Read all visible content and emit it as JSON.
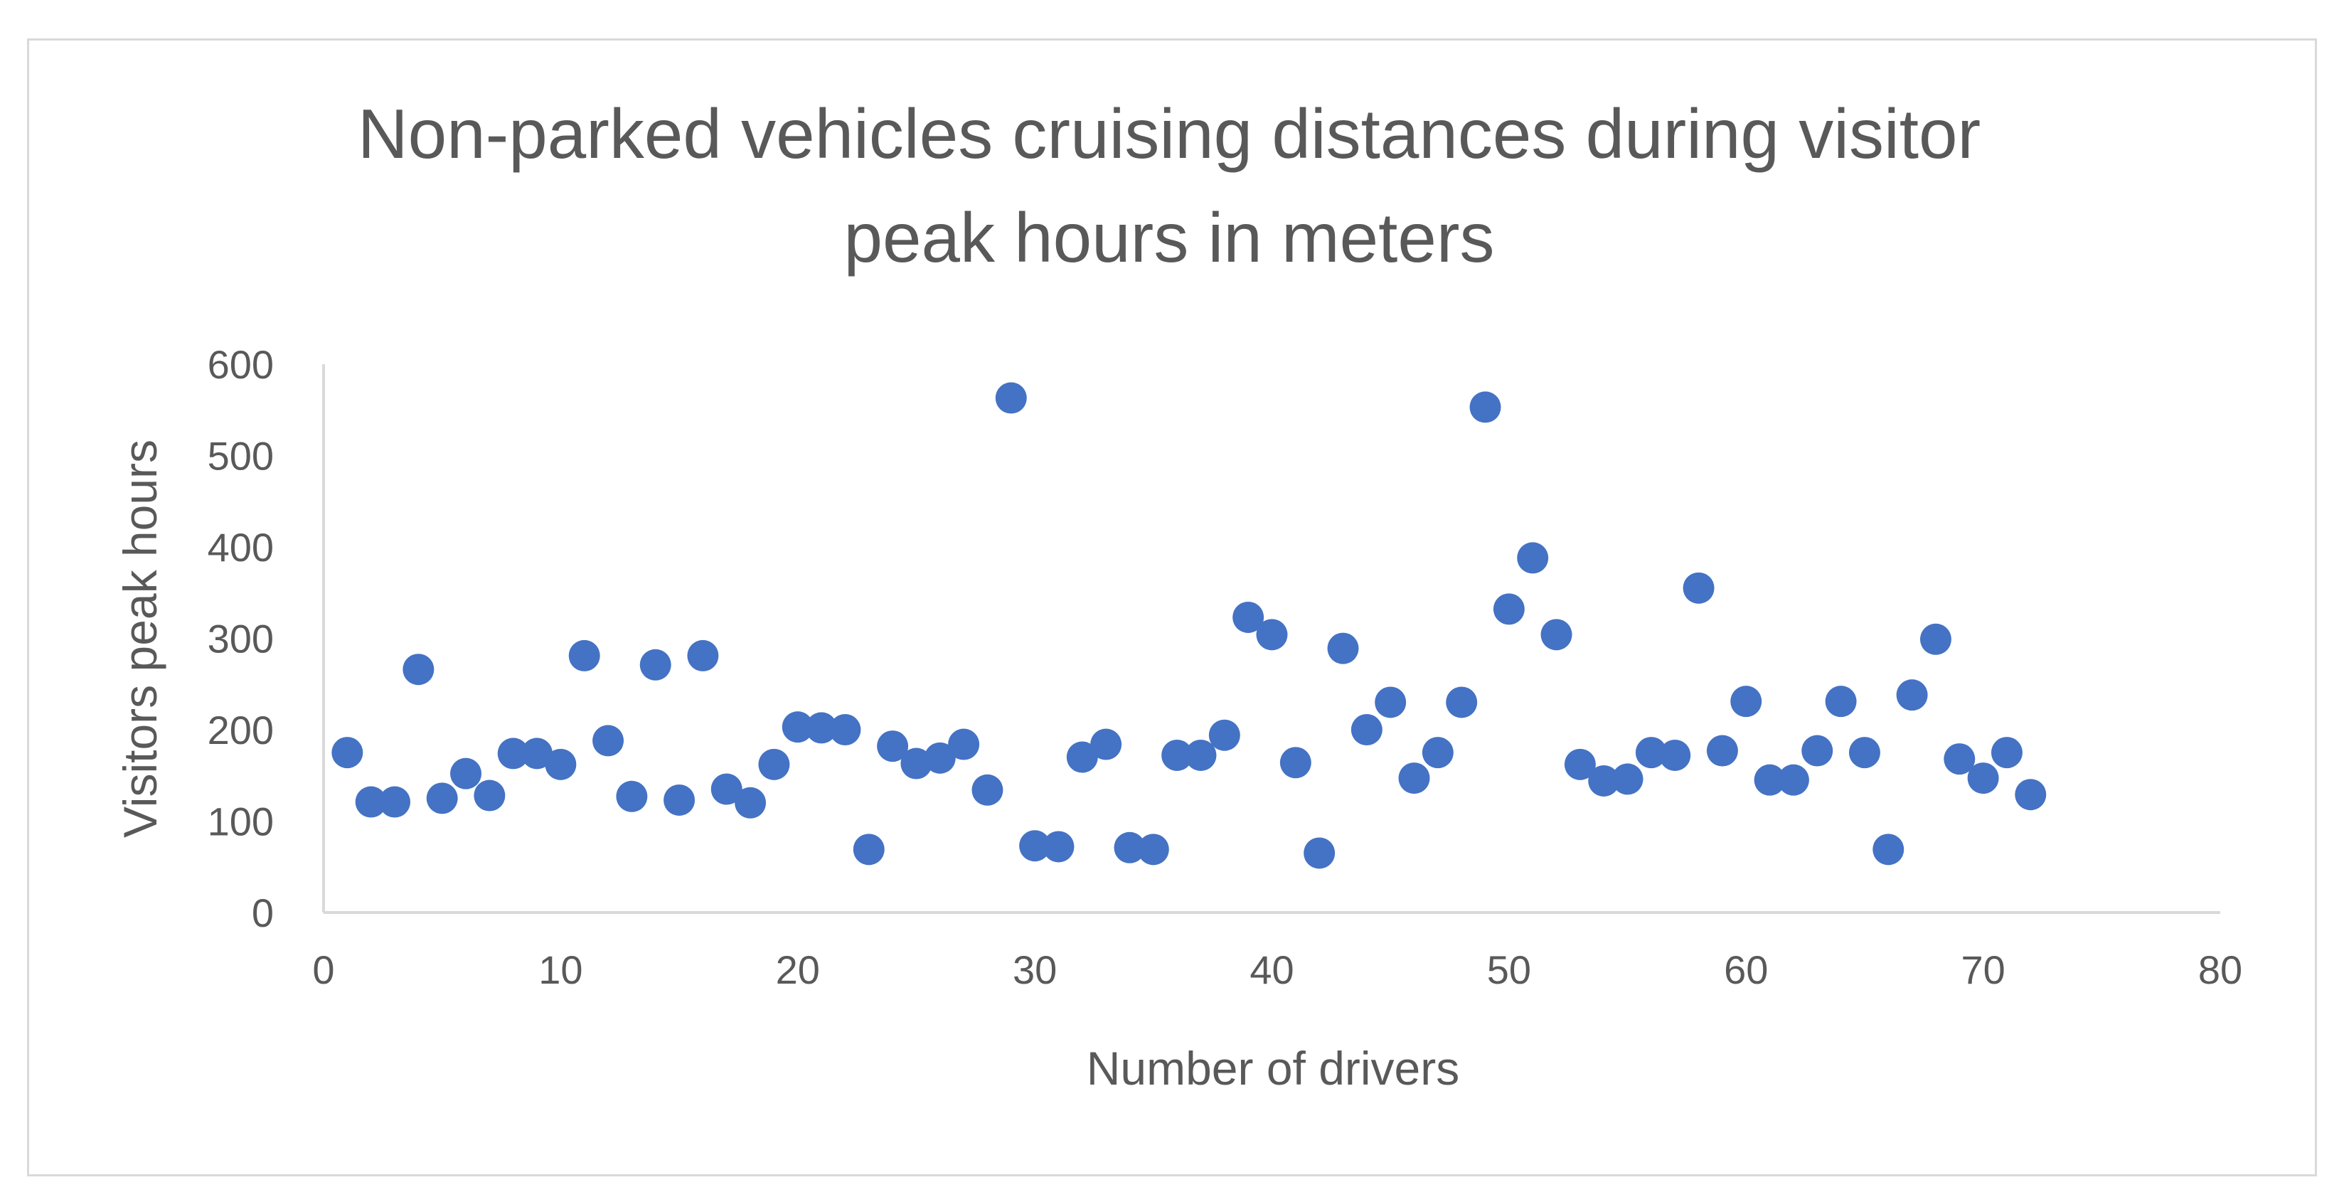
{
  "chart_data": {
    "type": "scatter",
    "title_lines": [
      "Non-parked vehicles cruising distances during visitor",
      "peak hours in meters"
    ],
    "xlabel": "Number of drivers",
    "ylabel": "Visitors peak hours",
    "xlim": [
      0,
      80
    ],
    "ylim": [
      0,
      600
    ],
    "x_ticks": [
      0,
      10,
      20,
      30,
      40,
      50,
      60,
      70,
      80
    ],
    "y_ticks": [
      0,
      100,
      200,
      300,
      400,
      500,
      600
    ],
    "grid": false,
    "marker_color": "#4472C4",
    "axis_color": "#d9d9d9",
    "series": [
      {
        "name": "Visitors peak hours",
        "x": [
          1,
          2,
          3,
          4,
          5,
          6,
          7,
          8,
          9,
          10,
          11,
          12,
          13,
          14,
          15,
          16,
          17,
          18,
          19,
          20,
          21,
          22,
          23,
          24,
          25,
          26,
          27,
          28,
          29,
          30,
          31,
          32,
          33,
          34,
          35,
          36,
          37,
          38,
          39,
          40,
          41,
          42,
          43,
          44,
          45,
          46,
          47,
          48,
          49,
          50,
          51,
          52,
          53,
          54,
          55,
          56,
          57,
          58,
          59,
          60,
          61,
          62,
          63,
          64,
          65,
          66,
          67,
          68,
          69,
          70,
          71,
          72
        ],
        "y": [
          175,
          121,
          121,
          266,
          125,
          152,
          128,
          174,
          174,
          162,
          281,
          188,
          127,
          271,
          123,
          281,
          135,
          120,
          162,
          203,
          202,
          200,
          69,
          182,
          163,
          169,
          184,
          134,
          563,
          73,
          72,
          170,
          184,
          71,
          69,
          172,
          172,
          194,
          323,
          304,
          164,
          65,
          289,
          200,
          230,
          147,
          175,
          230,
          553,
          332,
          388,
          304,
          162,
          144,
          146,
          175,
          172,
          355,
          177,
          231,
          145,
          145,
          177,
          231,
          175,
          69,
          238,
          299,
          168,
          147,
          175,
          129
        ]
      }
    ]
  }
}
